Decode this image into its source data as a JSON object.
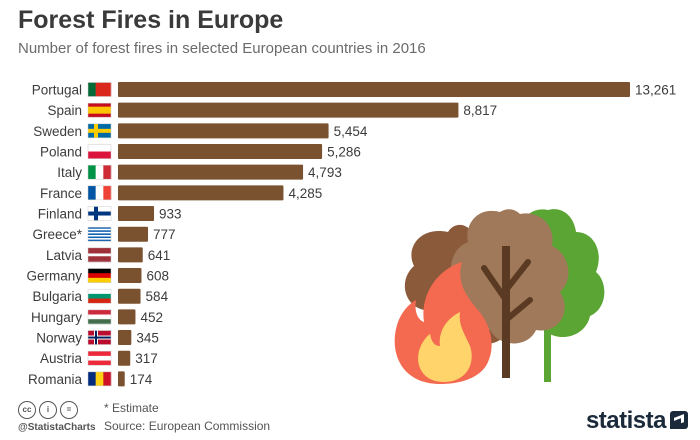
{
  "header": {
    "title": "Forest Fires in Europe",
    "subtitle": "Number of forest fires in selected European countries in 2016"
  },
  "chart_data": {
    "type": "bar",
    "orientation": "horizontal",
    "title": "Forest Fires in Europe",
    "subtitle": "Number of forest fires in selected European countries in 2016",
    "categories": [
      "Portugal",
      "Spain",
      "Sweden",
      "Poland",
      "Italy",
      "France",
      "Finland",
      "Greece*",
      "Latvia",
      "Germany",
      "Bulgaria",
      "Hungary",
      "Norway",
      "Austria",
      "Romania"
    ],
    "values": [
      13261,
      8817,
      5454,
      5286,
      4793,
      4285,
      933,
      777,
      641,
      608,
      584,
      452,
      345,
      317,
      174
    ],
    "value_labels": [
      "13,261",
      "8,817",
      "5,454",
      "5,286",
      "4,793",
      "4,285",
      "933",
      "777",
      "641",
      "608",
      "584",
      "452",
      "345",
      "317",
      "174"
    ],
    "xlim": [
      0,
      13261
    ],
    "grid": false,
    "legend": "none",
    "bar_color": "#7a5230",
    "label_color": "#3c3c3c"
  },
  "footer": {
    "cc_icons": [
      "cc",
      "i",
      "="
    ],
    "handle": "@StatistaCharts",
    "note": "* Estimate",
    "source": "Source: European Commission",
    "brand": "statista"
  },
  "illustration": {
    "icons": [
      "brown-tree-icon",
      "tan-tree-icon",
      "green-tree-icon",
      "flame-icon"
    ],
    "colors": {
      "tree_dark": "#8a5a3a",
      "tree_tan": "#a0795a",
      "tree_green": "#5aa533",
      "flame_outer": "#f46a50",
      "flame_inner": "#ffd56b"
    }
  }
}
